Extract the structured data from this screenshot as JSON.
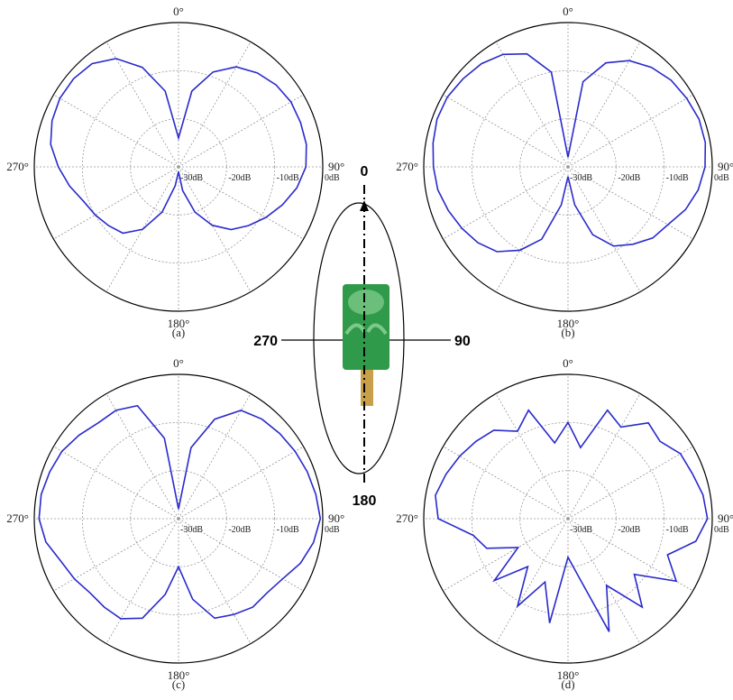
{
  "chart_data": [
    {
      "type": "polar",
      "caption": "(a)",
      "color": "#2a2acc",
      "rlim": [
        -30,
        0
      ],
      "rticks": [
        {
          "value": -30,
          "label": "-30dB"
        },
        {
          "value": -20,
          "label": "-20dB"
        },
        {
          "value": -10,
          "label": "-10dB"
        },
        {
          "value": 0,
          "label": "0dB"
        }
      ],
      "thetaticks": [
        {
          "value": 0,
          "label": "0°"
        },
        {
          "value": 90,
          "label": "90°"
        },
        {
          "value": 180,
          "label": "180°"
        },
        {
          "value": 270,
          "label": "270°"
        }
      ],
      "theta": [
        0,
        10,
        20,
        30,
        40,
        50,
        60,
        70,
        80,
        90,
        100,
        110,
        120,
        130,
        140,
        150,
        160,
        170,
        180,
        190,
        200,
        210,
        220,
        230,
        240,
        250,
        260,
        270,
        280,
        290,
        300,
        310,
        320,
        330,
        340,
        350
      ],
      "values": [
        -24,
        -14,
        -9,
        -6,
        -4.5,
        -3.5,
        -3,
        -3,
        -3,
        -3.5,
        -5,
        -7,
        -9,
        -11,
        -13,
        -16,
        -20,
        -25,
        -29,
        -26,
        -20,
        -15,
        -12,
        -11,
        -10,
        -9,
        -7,
        -5,
        -3,
        -2,
        -1.5,
        -1.5,
        -2,
        -4,
        -8,
        -14
      ]
    },
    {
      "type": "polar",
      "caption": "(b)",
      "color": "#2a2acc",
      "rlim": [
        -30,
        0
      ],
      "rticks": [
        {
          "value": -30,
          "label": "-30dB"
        },
        {
          "value": -20,
          "label": "-20dB"
        },
        {
          "value": -10,
          "label": "-10dB"
        },
        {
          "value": 0,
          "label": "0dB"
        }
      ],
      "thetaticks": [
        {
          "value": 0,
          "label": "0°"
        },
        {
          "value": 90,
          "label": "90°"
        },
        {
          "value": 180,
          "label": "180°"
        },
        {
          "value": 270,
          "label": "270°"
        }
      ],
      "theta": [
        0,
        10,
        20,
        30,
        40,
        50,
        60,
        70,
        80,
        90,
        100,
        110,
        120,
        130,
        140,
        150,
        160,
        170,
        180,
        190,
        200,
        210,
        220,
        230,
        240,
        250,
        260,
        270,
        280,
        290,
        300,
        310,
        320,
        330,
        340,
        350
      ],
      "values": [
        -28,
        -12,
        -7,
        -4.5,
        -3,
        -2,
        -1.5,
        -1,
        -1,
        -1.5,
        -2.5,
        -4,
        -6,
        -7,
        -9,
        -11,
        -15,
        -22,
        -28,
        -22,
        -14,
        -10,
        -7,
        -5.5,
        -4.5,
        -3.5,
        -2.5,
        -2,
        -1.5,
        -1,
        -1,
        -1.5,
        -2,
        -3,
        -5,
        -10
      ]
    },
    {
      "type": "polar",
      "caption": "(c)",
      "color": "#2a2acc",
      "rlim": [
        -30,
        0
      ],
      "rticks": [
        {
          "value": -30,
          "label": "-30dB"
        },
        {
          "value": -20,
          "label": "-20dB"
        },
        {
          "value": -10,
          "label": "-10dB"
        },
        {
          "value": 0,
          "label": "0dB"
        }
      ],
      "thetaticks": [
        {
          "value": 0,
          "label": "0°"
        },
        {
          "value": 90,
          "label": "90°"
        },
        {
          "value": 180,
          "label": "180°"
        },
        {
          "value": 270,
          "label": "270°"
        }
      ],
      "theta": [
        0,
        10,
        20,
        30,
        40,
        50,
        60,
        70,
        80,
        90,
        100,
        110,
        120,
        130,
        140,
        150,
        160,
        170,
        180,
        190,
        200,
        210,
        220,
        230,
        240,
        250,
        260,
        270,
        280,
        290,
        300,
        310,
        320,
        330,
        340,
        350
      ],
      "values": [
        -28,
        -15,
        -8,
        -4,
        -3,
        -2.5,
        -2,
        -1.5,
        -1,
        -0.5,
        -1.5,
        -3,
        -5,
        -6,
        -6,
        -7,
        -8,
        -13,
        -20,
        -14,
        -8,
        -6,
        -6,
        -6,
        -5,
        -4,
        -2,
        -1,
        -1,
        -1.5,
        -2,
        -3,
        -4,
        -4,
        -5,
        -13
      ]
    },
    {
      "type": "polar",
      "caption": "(d)",
      "color": "#2a2acc",
      "rlim": [
        -30,
        0
      ],
      "rticks": [
        {
          "value": -30,
          "label": "-30dB"
        },
        {
          "value": -20,
          "label": "-20dB"
        },
        {
          "value": -10,
          "label": "-10dB"
        },
        {
          "value": 0,
          "label": "0dB"
        }
      ],
      "thetaticks": [
        {
          "value": 0,
          "label": "0°"
        },
        {
          "value": 90,
          "label": "90°"
        },
        {
          "value": 180,
          "label": "180°"
        },
        {
          "value": 270,
          "label": "270°"
        }
      ],
      "theta": [
        0,
        10,
        20,
        30,
        40,
        50,
        60,
        70,
        80,
        90,
        100,
        110,
        120,
        130,
        140,
        150,
        160,
        170,
        180,
        190,
        200,
        210,
        220,
        230,
        240,
        250,
        260,
        270,
        280,
        290,
        300,
        310,
        320,
        330,
        340,
        350
      ],
      "values": [
        -10,
        -15,
        -6,
        -8,
        -4,
        -5,
        -3,
        -2.5,
        -1.5,
        -1,
        -3,
        -8,
        -4,
        -12,
        -6,
        -14,
        -5,
        -18,
        -22,
        -8,
        -16,
        -9,
        -17,
        -10,
        -18,
        -12,
        -10,
        -3,
        -2,
        -3,
        -4,
        -5,
        -6,
        -9,
        -6,
        -14
      ]
    }
  ],
  "antenna_diagram": {
    "top": "0",
    "right": "90",
    "bottom": "180",
    "left": "270"
  }
}
